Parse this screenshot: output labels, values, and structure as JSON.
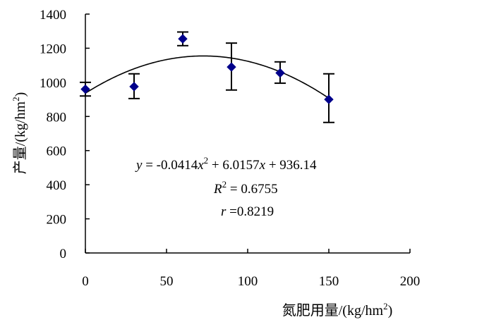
{
  "chart_data": {
    "type": "scatter",
    "title": "",
    "xlabel": "氮肥用量/(kg/hm",
    "xlabel_sup": "2",
    "xlabel_end": ")",
    "ylabel": "产量/(kg/hm",
    "ylabel_sup": "2",
    "ylabel_end": ")",
    "xlim": [
      0,
      200
    ],
    "ylim": [
      0,
      1400
    ],
    "x_ticks": [
      0,
      50,
      100,
      150,
      200
    ],
    "y_ticks": [
      0,
      200,
      400,
      600,
      800,
      1000,
      1200,
      1400
    ],
    "grid": false,
    "series": [
      {
        "marker": "diamond",
        "color": "#00008B",
        "points": [
          {
            "x": 0,
            "y": 960,
            "err_low": 920,
            "err_high": 1000
          },
          {
            "x": 30,
            "y": 975,
            "err_low": 905,
            "err_high": 1050
          },
          {
            "x": 60,
            "y": 1255,
            "err_low": 1215,
            "err_high": 1295
          },
          {
            "x": 90,
            "y": 1090,
            "err_low": 955,
            "err_high": 1230
          },
          {
            "x": 120,
            "y": 1055,
            "err_low": 995,
            "err_high": 1120
          },
          {
            "x": 150,
            "y": 900,
            "err_low": 765,
            "err_high": 1050
          }
        ]
      }
    ],
    "trendline": {
      "type": "polynomial",
      "coefficients": [
        -0.0414,
        6.0157,
        936.14
      ],
      "x_range": [
        0,
        150
      ]
    },
    "annotations": {
      "eq_y": "y",
      "eq_middle": " = -0.0414",
      "eq_x": "x",
      "eq_sup": "2",
      "eq_tail": " + 6.0157",
      "eq_x2": "x",
      "eq_end": " + 936.14",
      "r2_label": "R",
      "r2_sup": "2",
      "r2_value": " = 0.6755",
      "r_label": "r",
      "r_value": " =0.8219"
    }
  }
}
